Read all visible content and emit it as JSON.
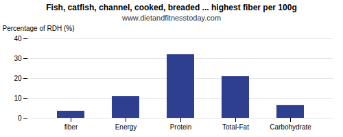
{
  "chart_data": {
    "type": "bar",
    "title": "Fish, catfish, channel, cooked, breaded ... highest fiber per 100g",
    "subtitle": "www.dietandfitnesstoday.com",
    "categories": [
      "fiber",
      "Energy",
      "Protein",
      "Total-Fat",
      "Carbohydrate"
    ],
    "values": [
      3.5,
      11.0,
      32.0,
      21.0,
      6.5
    ],
    "color": "#2e3f8f",
    "ylabel": "Percentage of RDH (%)",
    "ylim": [
      0,
      40
    ],
    "yticks": [
      0,
      10,
      20,
      30,
      40
    ],
    "grid": true
  }
}
